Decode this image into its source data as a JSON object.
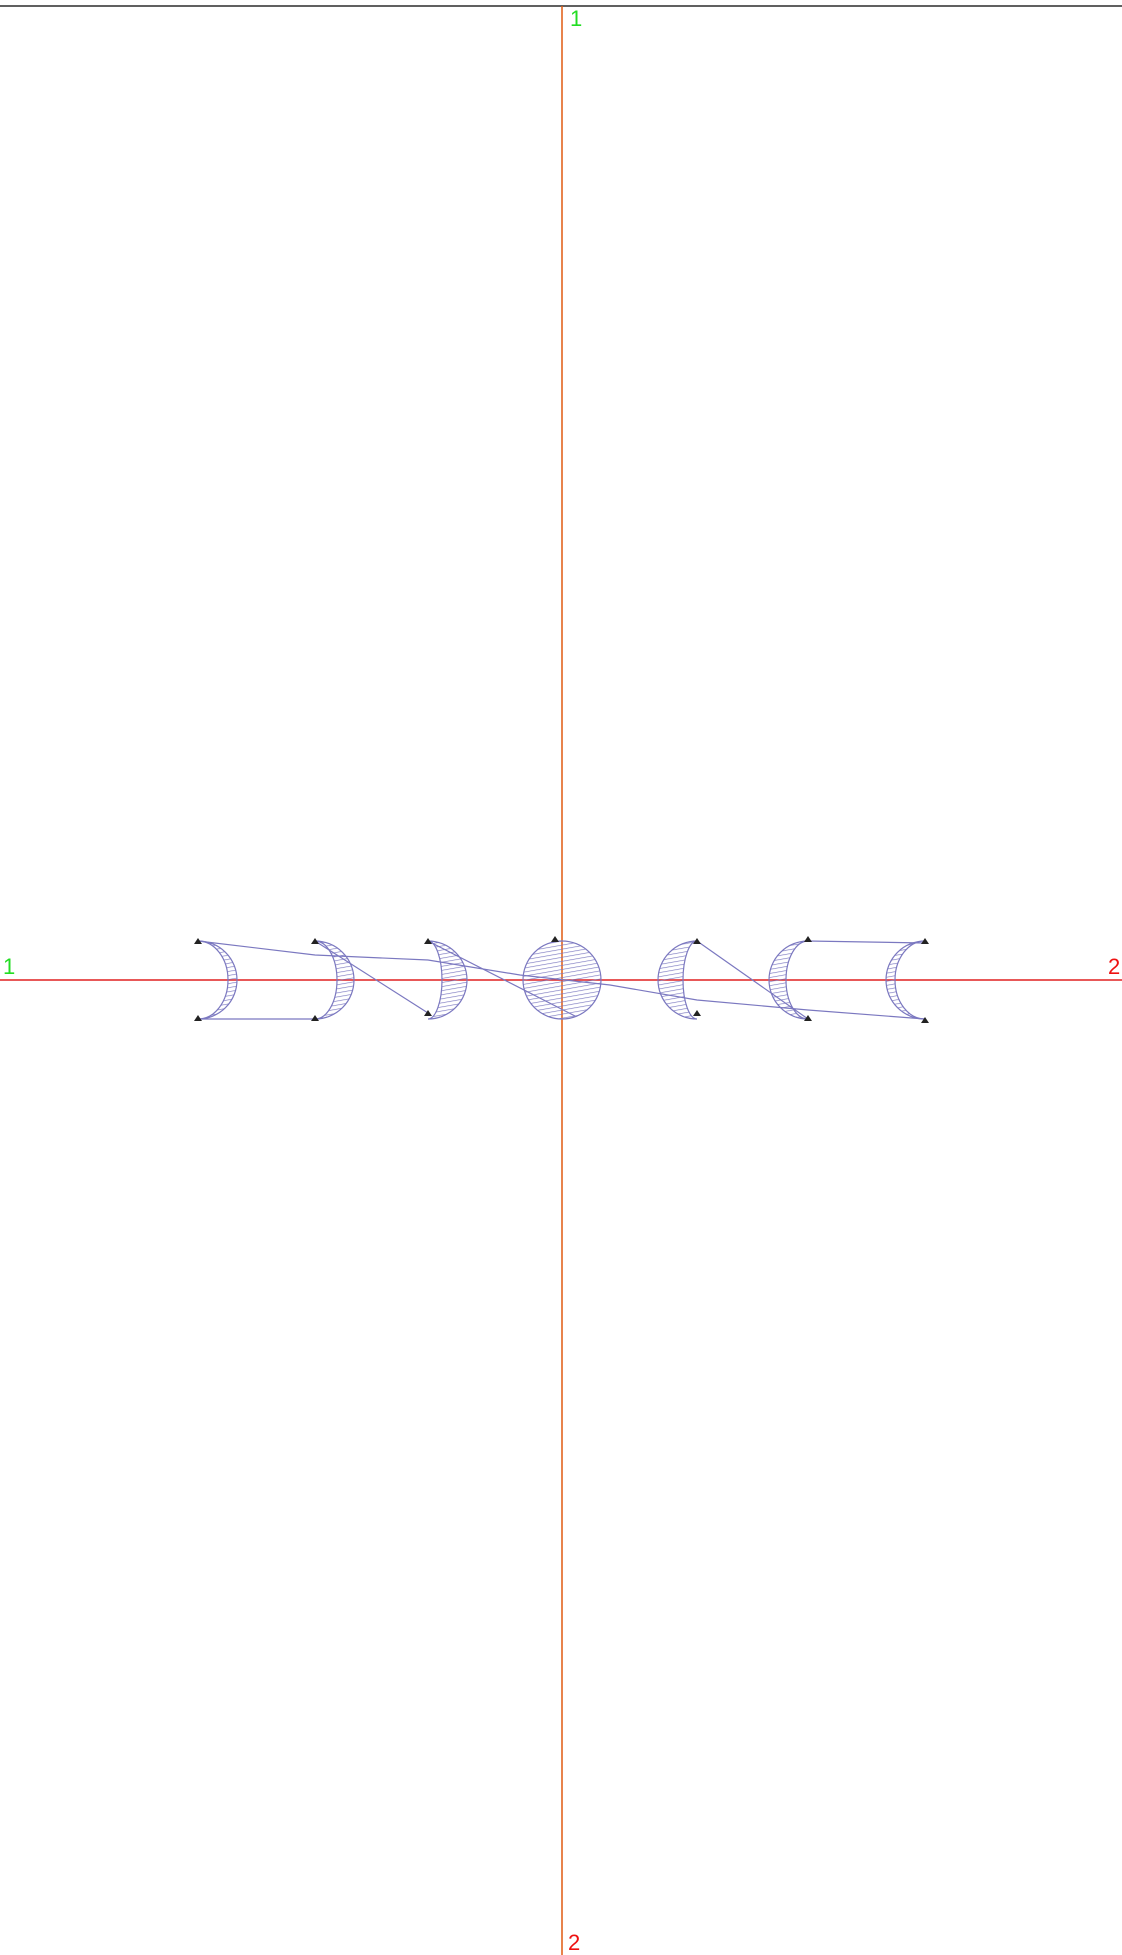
{
  "axes": {
    "vertical": {
      "start_label": "1",
      "end_label": "2"
    },
    "horizontal": {
      "start_label": "1",
      "end_label": "2"
    }
  }
}
